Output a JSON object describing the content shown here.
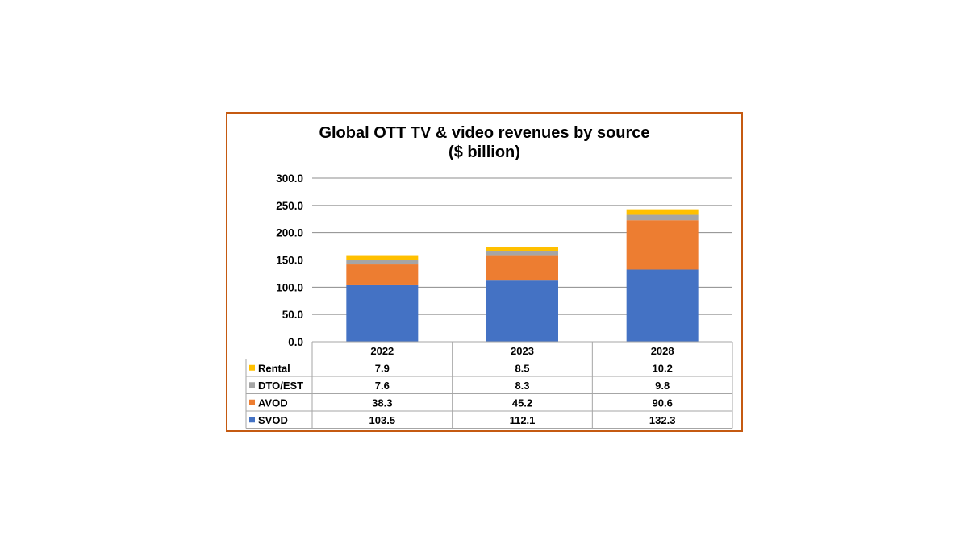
{
  "chart_data": {
    "type": "bar",
    "stacked": true,
    "title_lines": [
      "Global OTT TV & video revenues by source",
      "($ billion)"
    ],
    "categories": [
      "2022",
      "2023",
      "2028"
    ],
    "ylim": [
      0,
      300
    ],
    "yticks": [
      "0.0",
      "50.0",
      "100.0",
      "150.0",
      "200.0",
      "250.0",
      "300.0"
    ],
    "grid": true,
    "legend_position": "data-table",
    "series": [
      {
        "name": "SVOD",
        "color": "#4472C4",
        "values": [
          103.5,
          112.1,
          132.3
        ],
        "labels": [
          "103.5",
          "112.1",
          "132.3"
        ]
      },
      {
        "name": "AVOD",
        "color": "#ED7D31",
        "values": [
          38.3,
          45.2,
          90.6
        ],
        "labels": [
          "38.3",
          "45.2",
          "90.6"
        ]
      },
      {
        "name": "DTO/EST",
        "color": "#A5A5A5",
        "values": [
          7.6,
          8.3,
          9.8
        ],
        "labels": [
          "7.6",
          "8.3",
          "9.8"
        ]
      },
      {
        "name": "Rental",
        "color": "#FFC000",
        "values": [
          7.9,
          8.5,
          10.2
        ],
        "labels": [
          "7.9",
          "8.5",
          "10.2"
        ]
      }
    ],
    "frame_color": "#C55A11"
  }
}
